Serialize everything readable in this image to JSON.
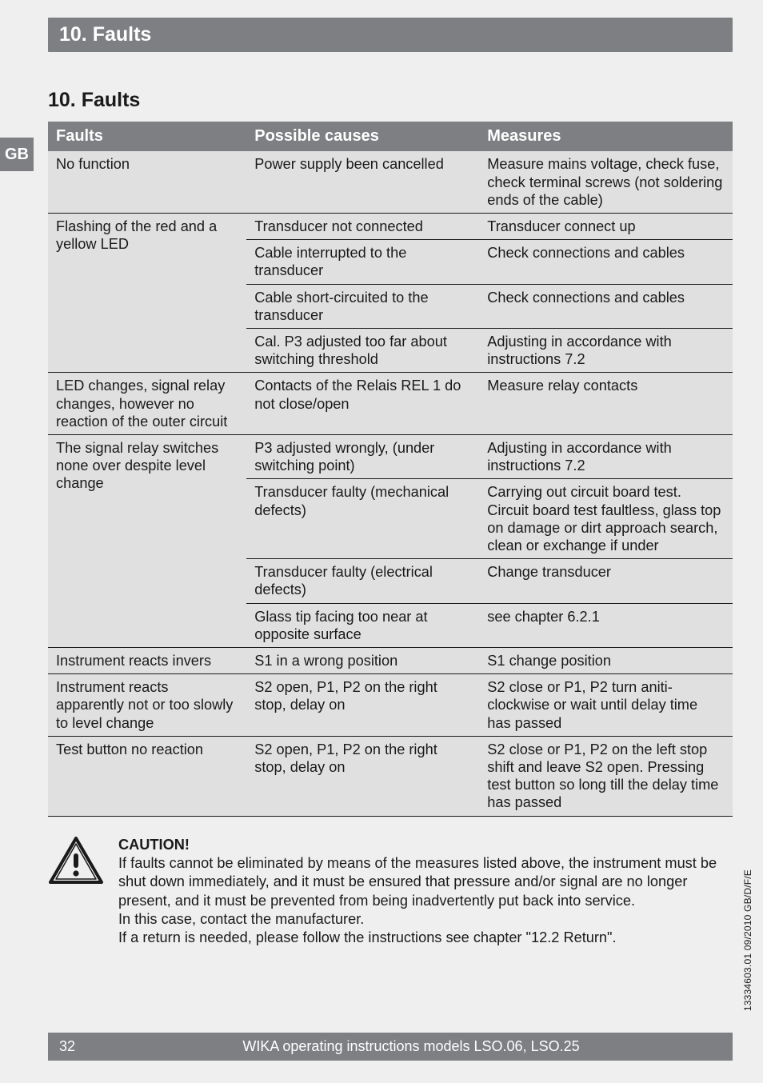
{
  "banner": {
    "title": "10. Faults"
  },
  "sideTab": {
    "label": "GB"
  },
  "heading": {
    "text": "10. Faults"
  },
  "table": {
    "headers": {
      "c1": "Faults",
      "c2": "Possible causes",
      "c3": "Measures"
    },
    "rows": [
      {
        "c1": "No function",
        "c2": "Power supply been cancelled",
        "c3": "Measure mains voltage, check fuse, check terminal screws (not soldering ends of the cable)",
        "c1rowspan": 1
      },
      {
        "c1": "Flashing of the red and a yellow LED",
        "c2": "Transducer not connected",
        "c3": "Transducer connect up",
        "c1rowspan": 4
      },
      {
        "c2": "Cable interrupted to the transducer",
        "c3": "Check connections and cables"
      },
      {
        "c2": "Cable short-circuited to the transducer",
        "c3": "Check connections and cables"
      },
      {
        "c2": "Cal. P3 adjusted too far about switching threshold",
        "c3": "Adjusting in accordance with instructions 7.2"
      },
      {
        "c1": "LED changes, signal relay changes, however no reaction of the outer circuit",
        "c2": "Contacts of the Relais REL 1 do not close/open",
        "c3": "Measure relay contacts",
        "c1rowspan": 1
      },
      {
        "c1": "The signal relay switches none over despite level change",
        "c2": "P3 adjusted wrongly, (under switching point)",
        "c3": "Adjusting in accordance with instructions 7.2",
        "c1rowspan": 4
      },
      {
        "c2": "Transducer faulty (mechanical defects)",
        "c3": "Carrying out circuit board test. Circuit board test faultless, glass top on damage or dirt approach search, clean or exchange if under"
      },
      {
        "c2": "Transducer faulty (electrical defects)",
        "c3": "Change transducer"
      },
      {
        "c2": "Glass tip facing too near at opposite surface",
        "c3": "see chapter 6.2.1"
      },
      {
        "c1": "Instrument reacts invers",
        "c2": "S1 in a wrong position",
        "c3": "S1 change position",
        "c1rowspan": 1
      },
      {
        "c1": "Instrument reacts apparently not or too slowly to level change",
        "c2": "S2 open, P1, P2 on the right stop, delay on",
        "c3": "S2 close or P1, P2 turn aniti-clockwise or wait until delay time has passed",
        "c1rowspan": 1
      },
      {
        "c1": "Test button no reaction",
        "c2": "S2 open, P1, P2 on the right stop, delay on",
        "c3": "S2 close or P1, P2 on the left stop shift and leave S2 open. Pressing test button so long till the delay time has passed",
        "c1rowspan": 1
      }
    ]
  },
  "caution": {
    "heading": "CAUTION!",
    "body1": "If faults cannot be eliminated by means of the measures listed above, the instrument must be shut down immediately, and it must be ensured that pressure and/or signal are no longer present, and it must be prevented from being inadvertently put back into service.",
    "body2": "In this case, contact the manufacturer.",
    "body3": "If a return is needed, please follow the instructions see chapter \"12.2 Return\"."
  },
  "footer": {
    "pageNumber": "32",
    "text": "WIKA operating instructions models LSO.06, LSO.25"
  },
  "sideText": {
    "text": "13334603.01 09/2010 GB/D/F/E"
  }
}
